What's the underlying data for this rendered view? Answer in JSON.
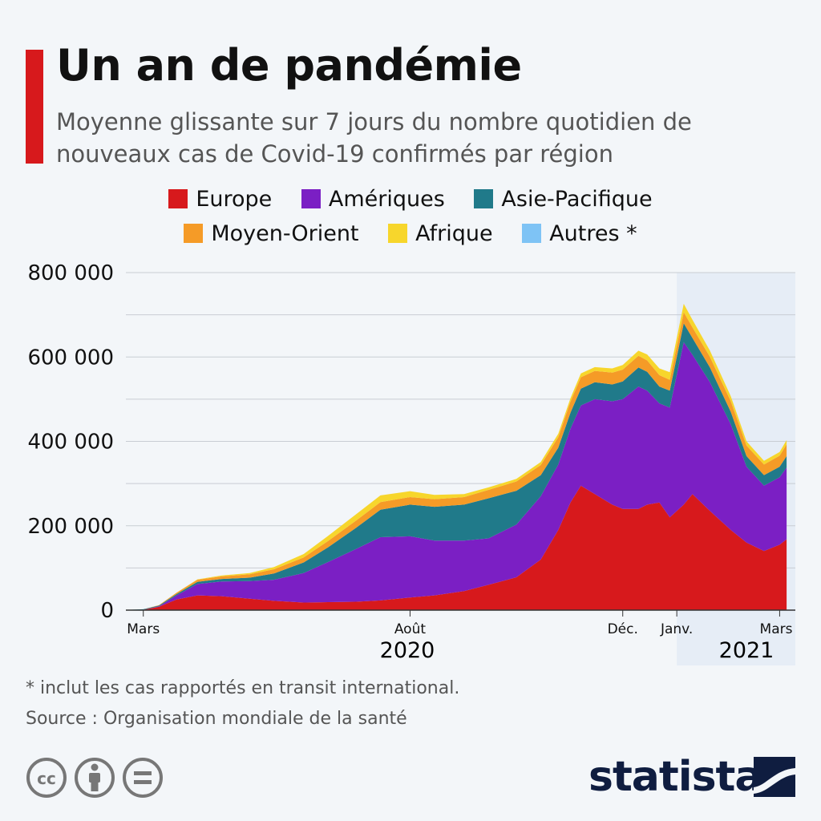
{
  "header": {
    "title": "Un an de pandémie",
    "subtitle": "Moyenne glissante sur 7 jours du nombre quotidien de nouveaux cas de Covid-19 confirmés par région"
  },
  "legend": [
    {
      "label": "Europe",
      "color": "#d7191c"
    },
    {
      "label": "Amériques",
      "color": "#7b1fc4"
    },
    {
      "label": "Asie-Pacifique",
      "color": "#207a8a"
    },
    {
      "label": "Moyen-Orient",
      "color": "#f59b27"
    },
    {
      "label": "Afrique",
      "color": "#f7d62c"
    },
    {
      "label": "Autres *",
      "color": "#7ec3f5"
    }
  ],
  "chart_data": {
    "type": "area",
    "stacked": true,
    "x": [
      "2020-02-20",
      "2020-03-01",
      "2020-03-10",
      "2020-03-20",
      "2020-04-01",
      "2020-04-15",
      "2020-05-01",
      "2020-05-15",
      "2020-06-01",
      "2020-06-15",
      "2020-07-01",
      "2020-07-15",
      "2020-08-01",
      "2020-08-15",
      "2020-09-01",
      "2020-09-15",
      "2020-10-01",
      "2020-10-15",
      "2020-10-25",
      "2020-11-01",
      "2020-11-07",
      "2020-11-15",
      "2020-11-25",
      "2020-12-01",
      "2020-12-10",
      "2020-12-15",
      "2020-12-22",
      "2020-12-28",
      "2021-01-05",
      "2021-01-10",
      "2021-01-20",
      "2021-02-01",
      "2021-02-10",
      "2021-02-20",
      "2021-03-01",
      "2021-03-05"
    ],
    "series": [
      {
        "name": "Europe",
        "color": "#d7191c",
        "values": [
          0,
          1000,
          8000,
          25000,
          35000,
          33000,
          27000,
          22000,
          18000,
          19000,
          20000,
          23000,
          30000,
          35000,
          45000,
          60000,
          78000,
          120000,
          190000,
          255000,
          295000,
          275000,
          250000,
          240000,
          240000,
          250000,
          255000,
          220000,
          250000,
          275000,
          235000,
          190000,
          160000,
          140000,
          155000,
          168000
        ]
      },
      {
        "name": "Amériques",
        "color": "#7b1fc4",
        "values": [
          0,
          0,
          1000,
          10000,
          27000,
          35000,
          42000,
          50000,
          70000,
          95000,
          125000,
          150000,
          145000,
          130000,
          120000,
          110000,
          125000,
          150000,
          155000,
          175000,
          190000,
          225000,
          245000,
          260000,
          290000,
          270000,
          235000,
          260000,
          385000,
          330000,
          305000,
          250000,
          180000,
          155000,
          160000,
          170000
        ]
      },
      {
        "name": "Asie-Pacifique",
        "color": "#207a8a",
        "values": [
          500,
          1000,
          2000,
          3000,
          5000,
          6000,
          8000,
          15000,
          25000,
          35000,
          50000,
          65000,
          75000,
          80000,
          85000,
          95000,
          80000,
          50000,
          40000,
          38000,
          40000,
          40000,
          40000,
          42000,
          45000,
          45000,
          40000,
          40000,
          45000,
          40000,
          35000,
          30000,
          25000,
          25000,
          25000,
          27000
        ]
      },
      {
        "name": "Moyen-Orient",
        "color": "#f59b27",
        "values": [
          0,
          0,
          1000,
          3000,
          5000,
          6000,
          8000,
          10000,
          12000,
          15000,
          17000,
          18000,
          18000,
          18000,
          18000,
          20000,
          22000,
          24000,
          25000,
          26000,
          27000,
          27000,
          28000,
          28000,
          28000,
          27000,
          27000,
          26000,
          26000,
          25000,
          25000,
          25000,
          25000,
          25000,
          26000,
          28000
        ]
      },
      {
        "name": "Afrique",
        "color": "#f7d62c",
        "values": [
          0,
          0,
          0,
          500,
          1000,
          2000,
          3000,
          5000,
          8000,
          12000,
          15000,
          16000,
          14000,
          10000,
          7000,
          6000,
          6000,
          7000,
          8000,
          8000,
          9000,
          9000,
          10000,
          11000,
          12000,
          14000,
          16000,
          18000,
          20000,
          18000,
          15000,
          12000,
          10000,
          9000,
          9000,
          10000
        ]
      },
      {
        "name": "Autres *",
        "color": "#7ec3f5",
        "values": [
          0,
          0,
          0,
          0,
          0,
          0,
          0,
          0,
          0,
          0,
          0,
          0,
          0,
          0,
          0,
          0,
          0,
          0,
          0,
          0,
          0,
          0,
          0,
          0,
          0,
          0,
          0,
          0,
          0,
          0,
          0,
          0,
          0,
          0,
          0,
          0
        ]
      }
    ],
    "ylim": [
      0,
      800000
    ],
    "yticks": [
      0,
      200000,
      400000,
      600000,
      800000
    ],
    "ytick_labels": [
      "0",
      "200 000",
      "400 000",
      "600 000",
      "800 000"
    ],
    "xticks": [
      {
        "date": "2020-03-01",
        "label": "Mars"
      },
      {
        "date": "2020-08-01",
        "label": "Août"
      },
      {
        "date": "2020-12-01",
        "label": "Déc."
      },
      {
        "date": "2021-01-01",
        "label": "Janv."
      },
      {
        "date": "2021-03-01",
        "label": "Mars"
      }
    ],
    "year_labels": [
      "2020",
      "2021"
    ],
    "highlight_range": [
      "2021-01-01",
      "2021-03-10"
    ],
    "grid": true,
    "legend_position": "top"
  },
  "footnote": "* inclut les cas rapportés en transit international.",
  "source": "Source : Organisation mondiale de la santé",
  "brand": {
    "name": "statista",
    "color": "#0f1d40"
  },
  "icons": [
    "creative-commons-icon",
    "attribution-icon",
    "no-derivatives-icon"
  ]
}
